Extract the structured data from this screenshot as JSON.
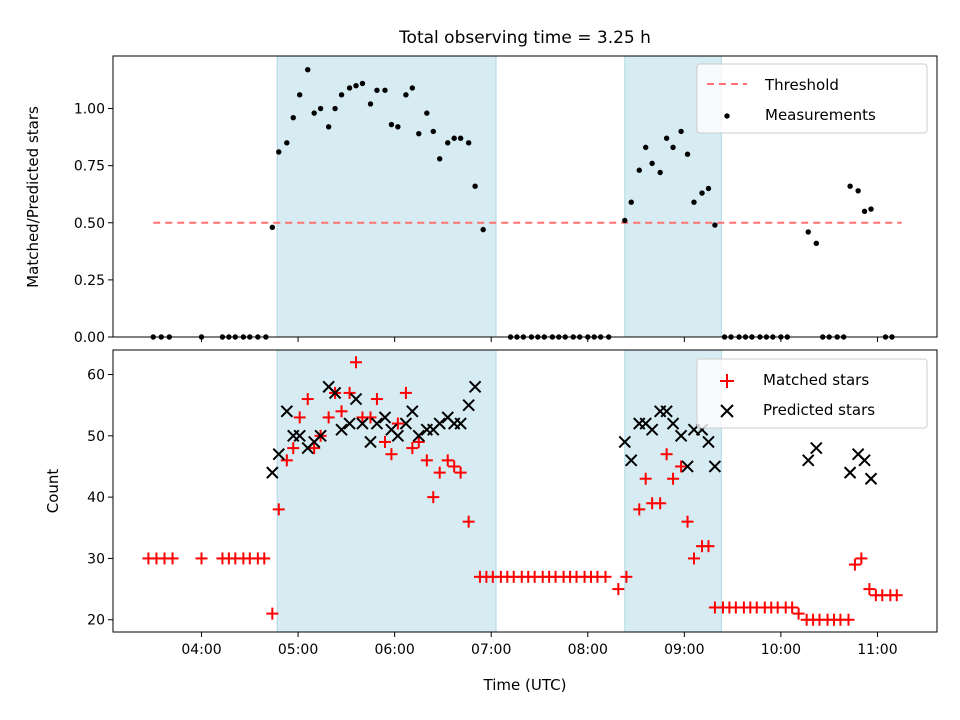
{
  "title": "Total observing time = 3.25 h",
  "xlabel": "Time (UTC)",
  "x_ticks": [
    "04:00",
    "05:00",
    "06:00",
    "07:00",
    "08:00",
    "09:00",
    "10:00",
    "11:00"
  ],
  "chart_data": [
    {
      "type": "scatter",
      "panel": "top",
      "ylabel": "Matched/Predicted stars",
      "ylim": [
        0,
        1.23
      ],
      "yticks": [
        "0.00",
        "0.25",
        "0.50",
        "0.75",
        "1.00"
      ],
      "xlim": [
        "03:05",
        "11:37"
      ],
      "shaded_intervals": [
        [
          "04:47",
          "07:03"
        ],
        [
          "08:23",
          "09:23"
        ]
      ],
      "threshold": {
        "name": "Threshold",
        "value": 0.5,
        "x": [
          "03:30",
          "11:15"
        ],
        "color": "#ff7070"
      },
      "legend": {
        "placement": "top-right",
        "entries": [
          "Threshold",
          "Measurements"
        ]
      },
      "series": [
        {
          "name": "Measurements",
          "color": "#000000",
          "points": [
            [
              "03:30",
              0
            ],
            [
              "03:35",
              0
            ],
            [
              "03:40",
              0
            ],
            [
              "04:00",
              0
            ],
            [
              "04:13",
              0
            ],
            [
              "04:17",
              0
            ],
            [
              "04:21",
              0
            ],
            [
              "04:26",
              0
            ],
            [
              "04:30",
              0
            ],
            [
              "04:35",
              0
            ],
            [
              "04:40",
              0
            ],
            [
              "04:44",
              0.48
            ],
            [
              "04:48",
              0.81
            ],
            [
              "04:53",
              0.85
            ],
            [
              "04:57",
              0.96
            ],
            [
              "05:01",
              1.06
            ],
            [
              "05:06",
              1.17
            ],
            [
              "05:10",
              0.98
            ],
            [
              "05:14",
              1.0
            ],
            [
              "05:19",
              0.92
            ],
            [
              "05:23",
              1.0
            ],
            [
              "05:27",
              1.06
            ],
            [
              "05:32",
              1.09
            ],
            [
              "05:36",
              1.1
            ],
            [
              "05:40",
              1.11
            ],
            [
              "05:45",
              1.02
            ],
            [
              "05:49",
              1.08
            ],
            [
              "05:54",
              1.08
            ],
            [
              "05:58",
              0.93
            ],
            [
              "06:02",
              0.92
            ],
            [
              "06:07",
              1.06
            ],
            [
              "06:11",
              1.09
            ],
            [
              "06:15",
              0.89
            ],
            [
              "06:20",
              0.98
            ],
            [
              "06:24",
              0.9
            ],
            [
              "06:28",
              0.78
            ],
            [
              "06:33",
              0.85
            ],
            [
              "06:37",
              0.87
            ],
            [
              "06:41",
              0.87
            ],
            [
              "06:46",
              0.85
            ],
            [
              "06:50",
              0.66
            ],
            [
              "06:55",
              0.47
            ],
            [
              "07:12",
              0
            ],
            [
              "07:16",
              0
            ],
            [
              "07:20",
              0
            ],
            [
              "07:25",
              0
            ],
            [
              "07:29",
              0
            ],
            [
              "07:33",
              0
            ],
            [
              "07:38",
              0
            ],
            [
              "07:42",
              0
            ],
            [
              "07:46",
              0
            ],
            [
              "07:51",
              0
            ],
            [
              "07:55",
              0
            ],
            [
              "08:00",
              0
            ],
            [
              "08:04",
              0
            ],
            [
              "08:08",
              0
            ],
            [
              "08:13",
              0
            ],
            [
              "08:23",
              0.51
            ],
            [
              "08:27",
              0.59
            ],
            [
              "08:32",
              0.73
            ],
            [
              "08:36",
              0.83
            ],
            [
              "08:40",
              0.76
            ],
            [
              "08:45",
              0.72
            ],
            [
              "08:49",
              0.87
            ],
            [
              "08:53",
              0.83
            ],
            [
              "08:58",
              0.9
            ],
            [
              "09:02",
              0.8
            ],
            [
              "09:06",
              0.59
            ],
            [
              "09:11",
              0.63
            ],
            [
              "09:15",
              0.65
            ],
            [
              "09:19",
              0.49
            ],
            [
              "09:25",
              0
            ],
            [
              "09:29",
              0
            ],
            [
              "09:34",
              0
            ],
            [
              "09:38",
              0
            ],
            [
              "09:42",
              0
            ],
            [
              "09:47",
              0
            ],
            [
              "09:51",
              0
            ],
            [
              "09:55",
              0
            ],
            [
              "10:00",
              0
            ],
            [
              "10:04",
              0
            ],
            [
              "10:17",
              0.46
            ],
            [
              "10:22",
              0.41
            ],
            [
              "10:26",
              0
            ],
            [
              "10:30",
              0
            ],
            [
              "10:35",
              0
            ],
            [
              "10:39",
              0
            ],
            [
              "10:43",
              0.66
            ],
            [
              "10:48",
              0.64
            ],
            [
              "10:52",
              0.55
            ],
            [
              "10:56",
              0.56
            ],
            [
              "11:05",
              0
            ],
            [
              "11:09",
              0
            ]
          ]
        }
      ]
    },
    {
      "type": "scatter",
      "panel": "bottom",
      "ylabel": "Count",
      "ylim": [
        18,
        64
      ],
      "yticks": [
        "20",
        "30",
        "40",
        "50",
        "60"
      ],
      "xlim": [
        "03:05",
        "11:37"
      ],
      "shaded_intervals": [
        [
          "04:47",
          "07:03"
        ],
        [
          "08:23",
          "09:23"
        ]
      ],
      "legend": {
        "placement": "top-right",
        "entries": [
          "Matched stars",
          "Predicted stars"
        ]
      },
      "series": [
        {
          "name": "Matched stars",
          "color": "#ff0000",
          "marker": "plus",
          "points": [
            [
              "03:27",
              30
            ],
            [
              "03:32",
              30
            ],
            [
              "03:37",
              30
            ],
            [
              "03:42",
              30
            ],
            [
              "04:00",
              30
            ],
            [
              "04:13",
              30
            ],
            [
              "04:17",
              30
            ],
            [
              "04:21",
              30
            ],
            [
              "04:26",
              30
            ],
            [
              "04:30",
              30
            ],
            [
              "04:35",
              30
            ],
            [
              "04:39",
              30
            ],
            [
              "04:44",
              21
            ],
            [
              "04:48",
              38
            ],
            [
              "04:53",
              46
            ],
            [
              "04:57",
              48
            ],
            [
              "05:01",
              53
            ],
            [
              "05:06",
              56
            ],
            [
              "05:10",
              48
            ],
            [
              "05:14",
              50
            ],
            [
              "05:19",
              53
            ],
            [
              "05:23",
              57
            ],
            [
              "05:27",
              54
            ],
            [
              "05:32",
              57
            ],
            [
              "05:36",
              62
            ],
            [
              "05:40",
              53
            ],
            [
              "05:45",
              53
            ],
            [
              "05:49",
              56
            ],
            [
              "05:54",
              49
            ],
            [
              "05:58",
              47
            ],
            [
              "06:02",
              52
            ],
            [
              "06:07",
              57
            ],
            [
              "06:11",
              48
            ],
            [
              "06:15",
              49
            ],
            [
              "06:20",
              46
            ],
            [
              "06:24",
              40
            ],
            [
              "06:28",
              44
            ],
            [
              "06:33",
              46
            ],
            [
              "06:37",
              45
            ],
            [
              "06:41",
              44
            ],
            [
              "06:46",
              36
            ],
            [
              "06:53",
              27
            ],
            [
              "06:57",
              27
            ],
            [
              "07:01",
              27
            ],
            [
              "07:06",
              27
            ],
            [
              "07:10",
              27
            ],
            [
              "07:14",
              27
            ],
            [
              "07:19",
              27
            ],
            [
              "07:23",
              27
            ],
            [
              "07:27",
              27
            ],
            [
              "07:32",
              27
            ],
            [
              "07:36",
              27
            ],
            [
              "07:40",
              27
            ],
            [
              "07:45",
              27
            ],
            [
              "07:49",
              27
            ],
            [
              "07:53",
              27
            ],
            [
              "07:58",
              27
            ],
            [
              "08:02",
              27
            ],
            [
              "08:06",
              27
            ],
            [
              "08:11",
              27
            ],
            [
              "08:19",
              25
            ],
            [
              "08:24",
              27
            ],
            [
              "08:32",
              38
            ],
            [
              "08:36",
              43
            ],
            [
              "08:40",
              39
            ],
            [
              "08:45",
              39
            ],
            [
              "08:49",
              47
            ],
            [
              "08:53",
              43
            ],
            [
              "08:58",
              45
            ],
            [
              "09:02",
              36
            ],
            [
              "09:06",
              30
            ],
            [
              "09:11",
              32
            ],
            [
              "09:15",
              32
            ],
            [
              "09:19",
              22
            ],
            [
              "09:24",
              22
            ],
            [
              "09:28",
              22
            ],
            [
              "09:32",
              22
            ],
            [
              "09:37",
              22
            ],
            [
              "09:41",
              22
            ],
            [
              "09:45",
              22
            ],
            [
              "09:50",
              22
            ],
            [
              "09:54",
              22
            ],
            [
              "09:58",
              22
            ],
            [
              "10:03",
              22
            ],
            [
              "10:07",
              22
            ],
            [
              "10:11",
              21
            ],
            [
              "10:16",
              20
            ],
            [
              "10:20",
              20
            ],
            [
              "10:24",
              20
            ],
            [
              "10:29",
              20
            ],
            [
              "10:33",
              20
            ],
            [
              "10:37",
              20
            ],
            [
              "10:42",
              20
            ],
            [
              "10:46",
              29
            ],
            [
              "10:50",
              30
            ],
            [
              "10:55",
              25
            ],
            [
              "10:59",
              24
            ],
            [
              "11:03",
              24
            ],
            [
              "11:08",
              24
            ],
            [
              "11:12",
              24
            ]
          ]
        },
        {
          "name": "Predicted stars",
          "color": "#000000",
          "marker": "x",
          "points": [
            [
              "04:44",
              44
            ],
            [
              "04:48",
              47
            ],
            [
              "04:53",
              54
            ],
            [
              "04:57",
              50
            ],
            [
              "05:01",
              50
            ],
            [
              "05:06",
              48
            ],
            [
              "05:10",
              49
            ],
            [
              "05:14",
              50
            ],
            [
              "05:19",
              58
            ],
            [
              "05:23",
              57
            ],
            [
              "05:27",
              51
            ],
            [
              "05:32",
              52
            ],
            [
              "05:36",
              56
            ],
            [
              "05:40",
              52
            ],
            [
              "05:45",
              49
            ],
            [
              "05:49",
              52
            ],
            [
              "05:54",
              53
            ],
            [
              "05:58",
              51
            ],
            [
              "06:02",
              50
            ],
            [
              "06:07",
              52
            ],
            [
              "06:11",
              54
            ],
            [
              "06:15",
              50
            ],
            [
              "06:20",
              51
            ],
            [
              "06:24",
              51
            ],
            [
              "06:28",
              52
            ],
            [
              "06:33",
              53
            ],
            [
              "06:37",
              52
            ],
            [
              "06:41",
              52
            ],
            [
              "06:46",
              55
            ],
            [
              "06:50",
              58
            ],
            [
              "08:23",
              49
            ],
            [
              "08:27",
              46
            ],
            [
              "08:32",
              52
            ],
            [
              "08:36",
              52
            ],
            [
              "08:40",
              51
            ],
            [
              "08:45",
              54
            ],
            [
              "08:49",
              54
            ],
            [
              "08:53",
              52
            ],
            [
              "08:58",
              50
            ],
            [
              "09:02",
              45
            ],
            [
              "09:06",
              51
            ],
            [
              "09:11",
              51
            ],
            [
              "09:15",
              49
            ],
            [
              "09:19",
              45
            ],
            [
              "10:17",
              46
            ],
            [
              "10:22",
              48
            ],
            [
              "10:43",
              44
            ],
            [
              "10:48",
              47
            ],
            [
              "10:52",
              46
            ],
            [
              "10:56",
              43
            ]
          ]
        }
      ]
    }
  ]
}
